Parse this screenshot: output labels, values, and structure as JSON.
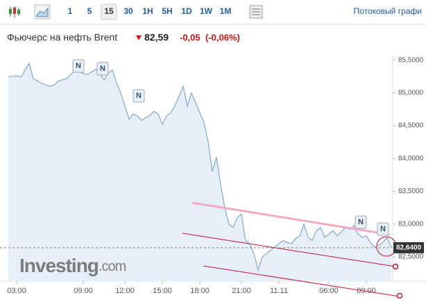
{
  "toolbar": {
    "items": [
      "1",
      "5",
      "15",
      "30",
      "1H",
      "5H",
      "1D",
      "1W",
      "1M"
    ],
    "active": "15",
    "stream_link": "Потоковый графи"
  },
  "header": {
    "title": "Фьючерс на нефть Brent",
    "price": "82,59",
    "change": "-0,05",
    "change_percent": "(-0,06%)"
  },
  "chart_data": {
    "type": "area",
    "categories": [
      null,
      null,
      "03:00",
      null,
      null,
      null,
      null,
      null,
      null,
      null,
      null,
      null,
      null,
      null,
      null,
      null,
      null,
      null,
      "09:00",
      null,
      null,
      null,
      null,
      null,
      null,
      null,
      null,
      null,
      "12:00",
      null,
      null,
      null,
      null,
      null,
      null,
      null,
      null,
      "15:00",
      null,
      null,
      null,
      null,
      null,
      null,
      null,
      null,
      "18:00",
      null,
      null,
      null,
      null,
      null,
      null,
      null,
      null,
      null,
      "21:00",
      null,
      null,
      null,
      null,
      null,
      null,
      null,
      null,
      "11.11",
      null,
      null,
      null,
      null,
      null,
      null,
      null,
      null,
      null,
      null,
      null,
      "06:00",
      null,
      null,
      null,
      null,
      null,
      null,
      null,
      null,
      "09:00",
      null,
      null,
      null,
      null,
      null,
      null
    ],
    "series": [
      {
        "color": "#7ea9cc",
        "values": [
          85.25,
          85.25,
          85.26,
          85.24,
          85.35,
          85.45,
          85.22,
          85.18,
          85.15,
          85.12,
          85.1,
          85.12,
          85.18,
          85.2,
          85.22,
          85.28,
          85.35,
          85.32,
          85.3,
          85.28,
          85.32,
          85.36,
          85.3,
          85.2,
          85.3,
          85.35,
          85.15,
          85.0,
          84.8,
          84.6,
          84.68,
          84.65,
          84.58,
          84.62,
          84.66,
          84.72,
          84.68,
          84.52,
          84.65,
          84.7,
          84.8,
          84.95,
          85.1,
          84.8,
          85.0,
          84.85,
          84.7,
          84.55,
          84.25,
          83.8,
          84.02,
          83.6,
          83.25,
          83.0,
          82.95,
          83.1,
          83.15,
          82.75,
          82.7,
          82.55,
          82.3,
          82.5,
          82.55,
          82.6,
          82.65,
          82.7,
          82.75,
          82.72,
          82.7,
          82.78,
          82.82,
          83.0,
          82.8,
          82.75,
          82.9,
          82.95,
          82.8,
          82.85,
          82.9,
          82.82,
          82.88,
          82.95,
          82.92,
          82.98,
          82.85,
          82.8,
          82.82,
          82.72,
          82.65,
          82.68,
          82.72,
          82.8,
          82.64
        ]
      }
    ],
    "fill": "#e6eff7",
    "ylim": [
      82.13,
      85.57
    ],
    "yticks": [
      {
        "value": 85.5,
        "label": "85,5000"
      },
      {
        "value": 85.0,
        "label": "85,0000"
      },
      {
        "value": 84.5,
        "label": "84,5000"
      },
      {
        "value": 84.0,
        "label": "84,0000"
      },
      {
        "value": 83.5,
        "label": "83,5000"
      },
      {
        "value": 83.0,
        "label": "83,0000"
      },
      {
        "value": 82.5,
        "label": "82,5000"
      }
    ],
    "last_price": {
      "value": 82.64,
      "label": "82,6400"
    },
    "news_markers": [
      "N",
      "N",
      "N",
      "N",
      "N"
    ],
    "watermark": {
      "brand": "Investing",
      "suffix": ".com"
    }
  }
}
